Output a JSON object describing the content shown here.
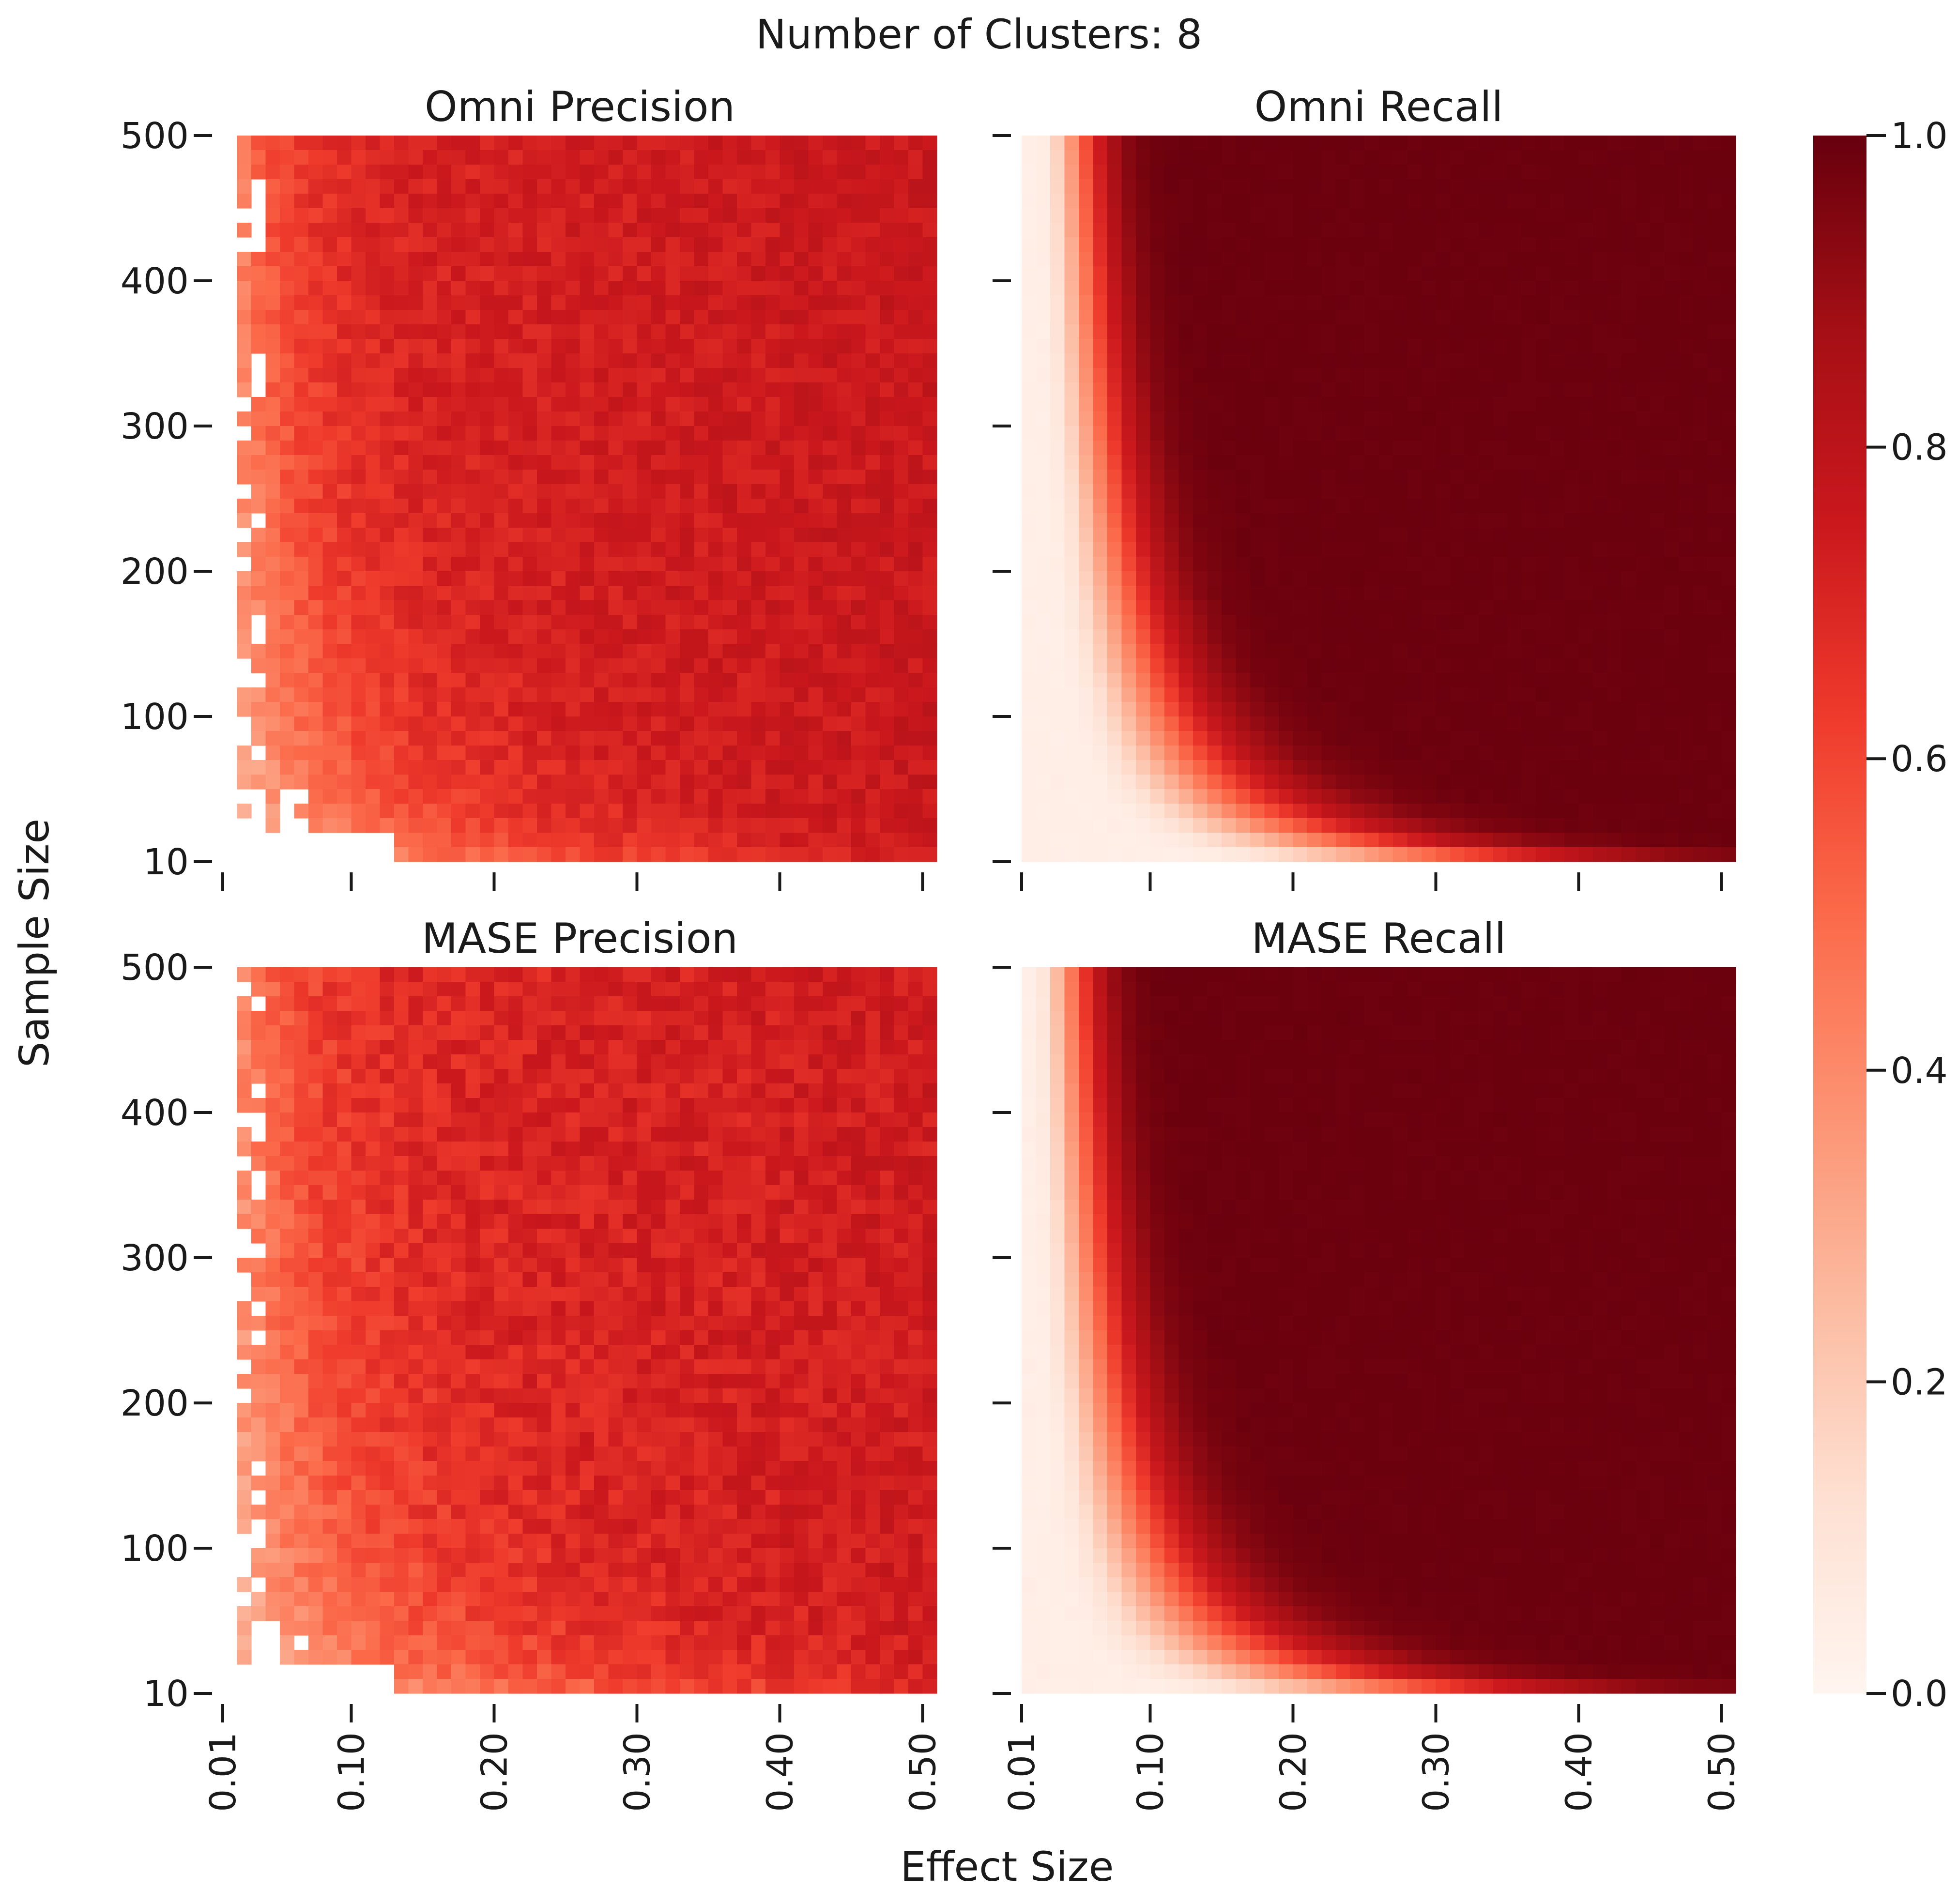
{
  "figure": {
    "suptitle": "Number of Clusters: 8",
    "xlabel": "Effect Size",
    "ylabel": "Sample Size"
  },
  "chart_data": [
    {
      "type": "heatmap",
      "title": "Omni Precision",
      "xlabel": "Effect Size",
      "ylabel": "Sample Size",
      "x_ticks": [
        "0.01",
        "0.10",
        "0.20",
        "0.30",
        "0.40",
        "0.50"
      ],
      "y_ticks": [
        "500",
        "400",
        "300",
        "200",
        "100",
        "10"
      ],
      "x_range": [
        0.01,
        0.51
      ],
      "y_range": [
        10,
        500
      ],
      "grid_size": [
        50,
        50
      ],
      "value_model": {
        "kind": "precision",
        "floor": 0.27,
        "plateau": 0.76,
        "k": 0.12,
        "noise": 0.05
      }
    },
    {
      "type": "heatmap",
      "title": "Omni Recall",
      "xlabel": "Effect Size",
      "ylabel": "Sample Size",
      "x_ticks": [
        "0.01",
        "0.10",
        "0.20",
        "0.30",
        "0.40",
        "0.50"
      ],
      "y_ticks": [
        "500",
        "400",
        "300",
        "200",
        "100",
        "10"
      ],
      "x_range": [
        0.01,
        0.51
      ],
      "y_range": [
        10,
        500
      ],
      "grid_size": [
        50,
        50
      ],
      "value_model": {
        "kind": "recall",
        "floor": 0.04,
        "plateau": 0.99,
        "k": 0.45,
        "noise": 0.01
      }
    },
    {
      "type": "heatmap",
      "title": "MASE Precision",
      "xlabel": "Effect Size",
      "ylabel": "Sample Size",
      "x_ticks": [
        "0.01",
        "0.10",
        "0.20",
        "0.30",
        "0.40",
        "0.50"
      ],
      "y_ticks": [
        "500",
        "400",
        "300",
        "200",
        "100",
        "10"
      ],
      "x_range": [
        0.01,
        0.51
      ],
      "y_range": [
        10,
        500
      ],
      "grid_size": [
        50,
        50
      ],
      "value_model": {
        "kind": "precision",
        "floor": 0.28,
        "plateau": 0.74,
        "k": 0.05,
        "noise": 0.06
      }
    },
    {
      "type": "heatmap",
      "title": "MASE Recall",
      "xlabel": "Effect Size",
      "ylabel": "Sample Size",
      "x_ticks": [
        "0.01",
        "0.10",
        "0.20",
        "0.30",
        "0.40",
        "0.50"
      ],
      "y_ticks": [
        "500",
        "400",
        "300",
        "200",
        "100",
        "10"
      ],
      "x_range": [
        0.01,
        0.51
      ],
      "y_range": [
        10,
        500
      ],
      "grid_size": [
        50,
        50
      ],
      "value_model": {
        "kind": "recall",
        "floor": 0.04,
        "plateau": 0.99,
        "k": 0.35,
        "noise": 0.01
      }
    }
  ],
  "colorbar": {
    "colormap": "Reds",
    "range": [
      0.0,
      1.0
    ],
    "ticks": [
      "1.0",
      "0.8",
      "0.6",
      "0.4",
      "0.2",
      "0.0"
    ],
    "stops": [
      "#fff5f0",
      "#fee0d2",
      "#fcbba1",
      "#fc9272",
      "#fb6a4a",
      "#ef3b2c",
      "#cb181d",
      "#a50f15",
      "#67000d"
    ]
  }
}
